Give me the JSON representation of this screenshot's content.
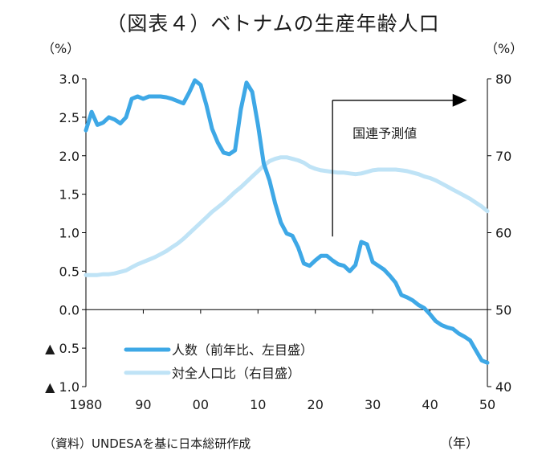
{
  "title": "（図表４）ベトナムの生産年齢人口",
  "source_note": "（資料）UNDESAを基に日本総研作成",
  "colors": {
    "workforce_count": "#3ea8e6",
    "share_of_total": "#bfe3f6",
    "axis": "#000000"
  },
  "chart_data": {
    "type": "line",
    "title": "（図表４）ベトナムの生産年齢人口",
    "x_unit_label": "（年）",
    "x_ticks": [
      {
        "x": 1980,
        "label": "1980"
      },
      {
        "x": 1990,
        "label": "90"
      },
      {
        "x": 2000,
        "label": "00"
      },
      {
        "x": 2010,
        "label": "10"
      },
      {
        "x": 2020,
        "label": "20"
      },
      {
        "x": 2030,
        "label": "30"
      },
      {
        "x": 2040,
        "label": "40"
      },
      {
        "x": 2050,
        "label": "50"
      }
    ],
    "xlim": [
      1980,
      2050
    ],
    "y_left": {
      "unit_label": "（%）",
      "ylim": [
        -1.0,
        3.0
      ],
      "ticks": [
        {
          "v": 3.0,
          "label": "3.0"
        },
        {
          "v": 2.5,
          "label": "2.5"
        },
        {
          "v": 2.0,
          "label": "2.0"
        },
        {
          "v": 1.5,
          "label": "1.5"
        },
        {
          "v": 1.0,
          "label": "1.0"
        },
        {
          "v": 0.5,
          "label": "0.5"
        },
        {
          "v": 0.0,
          "label": "0.0"
        },
        {
          "v": -0.5,
          "label": "▲ 0.5"
        },
        {
          "v": -1.0,
          "label": "▲ 1.0"
        }
      ]
    },
    "y_right": {
      "unit_label": "（%）",
      "ylim": [
        40,
        80
      ],
      "ticks": [
        {
          "v": 80,
          "label": "80"
        },
        {
          "v": 70,
          "label": "70"
        },
        {
          "v": 60,
          "label": "60"
        },
        {
          "v": 50,
          "label": "50"
        },
        {
          "v": 40,
          "label": "40"
        }
      ]
    },
    "annotation": {
      "text": "国連予測値",
      "from_year": 2023
    },
    "grid": false,
    "legend_position": "bottom-left",
    "series": [
      {
        "name": "人数（前年比、左目盛）",
        "axis": "left",
        "x": [
          1980,
          1981,
          1982,
          1983,
          1984,
          1985,
          1986,
          1987,
          1988,
          1989,
          1990,
          1991,
          1992,
          1993,
          1994,
          1995,
          1996,
          1997,
          1998,
          1999,
          2000,
          2001,
          2002,
          2003,
          2004,
          2005,
          2006,
          2007,
          2008,
          2009,
          2010,
          2011,
          2012,
          2013,
          2014,
          2015,
          2016,
          2017,
          2018,
          2019,
          2020,
          2021,
          2022,
          2023,
          2024,
          2025,
          2026,
          2027,
          2028,
          2029,
          2030,
          2031,
          2032,
          2033,
          2034,
          2035,
          2036,
          2037,
          2038,
          2039,
          2040,
          2041,
          2042,
          2043,
          2044,
          2045,
          2046,
          2047,
          2048,
          2049,
          2050
        ],
        "values": [
          2.33,
          2.57,
          2.4,
          2.43,
          2.5,
          2.47,
          2.42,
          2.5,
          2.74,
          2.77,
          2.74,
          2.77,
          2.77,
          2.77,
          2.76,
          2.74,
          2.71,
          2.68,
          2.82,
          2.98,
          2.92,
          2.66,
          2.35,
          2.17,
          2.04,
          2.02,
          2.07,
          2.6,
          2.95,
          2.83,
          2.4,
          1.9,
          1.68,
          1.38,
          1.13,
          0.99,
          0.96,
          0.81,
          0.6,
          0.57,
          0.64,
          0.7,
          0.7,
          0.64,
          0.59,
          0.57,
          0.5,
          0.58,
          0.88,
          0.85,
          0.62,
          0.57,
          0.52,
          0.44,
          0.35,
          0.19,
          0.16,
          0.12,
          0.06,
          0.02,
          -0.06,
          -0.15,
          -0.2,
          -0.23,
          -0.25,
          -0.31,
          -0.35,
          -0.4,
          -0.53,
          -0.66,
          -0.69
        ]
      },
      {
        "name": "対全人口比（右目盛）",
        "axis": "right",
        "x": [
          1980,
          1981,
          1982,
          1983,
          1984,
          1985,
          1986,
          1987,
          1988,
          1989,
          1990,
          1991,
          1992,
          1993,
          1994,
          1995,
          1996,
          1997,
          1998,
          1999,
          2000,
          2001,
          2002,
          2003,
          2004,
          2005,
          2006,
          2007,
          2008,
          2009,
          2010,
          2011,
          2012,
          2013,
          2014,
          2015,
          2016,
          2017,
          2018,
          2019,
          2020,
          2021,
          2022,
          2023,
          2024,
          2025,
          2026,
          2027,
          2028,
          2029,
          2030,
          2031,
          2032,
          2033,
          2034,
          2035,
          2036,
          2037,
          2038,
          2039,
          2040,
          2041,
          2042,
          2043,
          2044,
          2045,
          2046,
          2047,
          2048,
          2049,
          2050
        ],
        "values": [
          54.5,
          54.5,
          54.5,
          54.6,
          54.6,
          54.7,
          54.9,
          55.1,
          55.5,
          55.9,
          56.2,
          56.5,
          56.8,
          57.2,
          57.6,
          58.1,
          58.6,
          59.2,
          59.9,
          60.6,
          61.3,
          62.0,
          62.7,
          63.3,
          63.9,
          64.6,
          65.3,
          65.9,
          66.6,
          67.3,
          68.0,
          68.7,
          69.3,
          69.6,
          69.8,
          69.8,
          69.6,
          69.4,
          69.1,
          68.6,
          68.3,
          68.1,
          68.0,
          67.9,
          67.8,
          67.8,
          67.7,
          67.6,
          67.7,
          67.9,
          68.1,
          68.2,
          68.2,
          68.2,
          68.2,
          68.1,
          68.0,
          67.8,
          67.6,
          67.3,
          67.1,
          66.8,
          66.4,
          66.0,
          65.6,
          65.2,
          64.8,
          64.4,
          63.9,
          63.4,
          62.8
        ]
      }
    ]
  }
}
